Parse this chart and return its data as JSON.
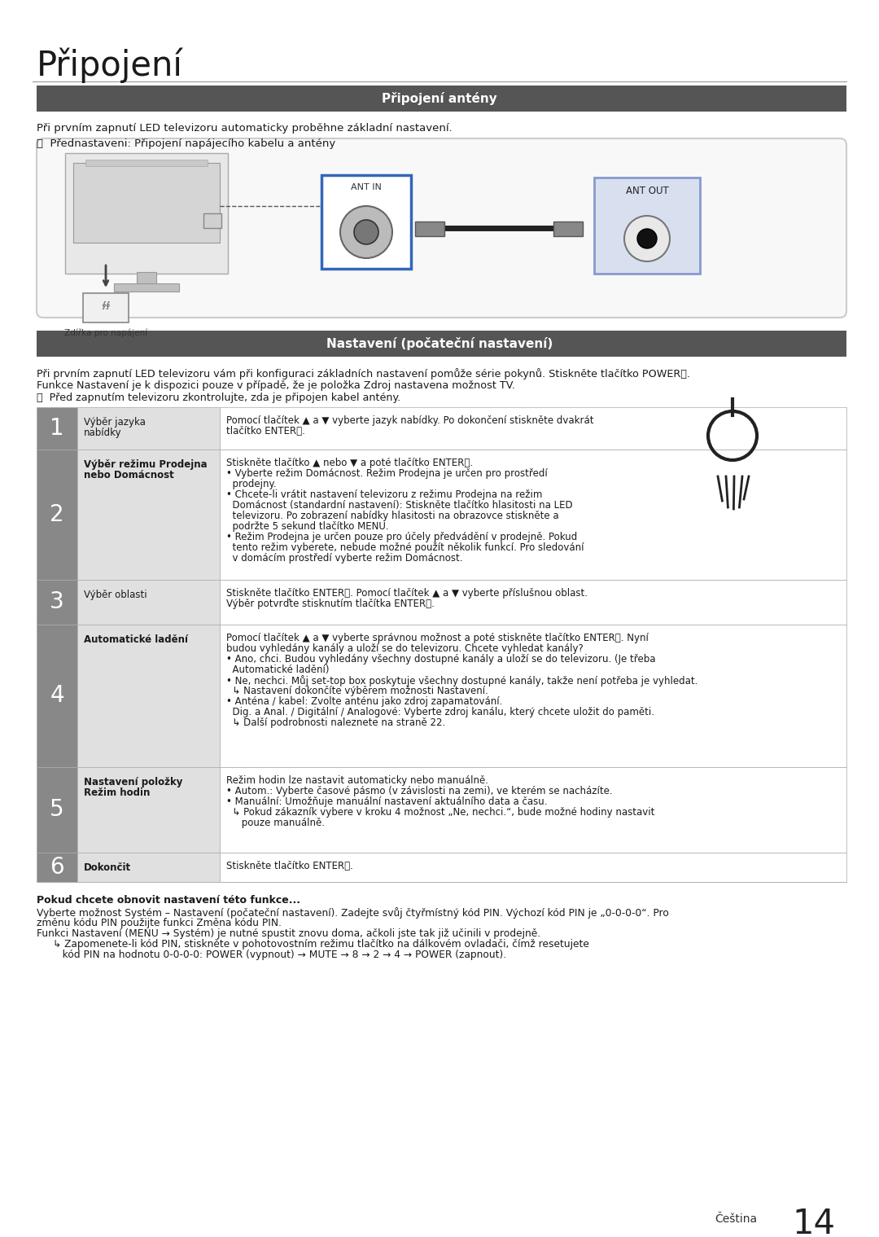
{
  "title": "Připojení",
  "section1_header": "Připojení antény",
  "section2_header": "Nastavení (počateční nastavení)",
  "header_bg": "#555555",
  "header_fg": "#ffffff",
  "bg_color": "#ffffff",
  "text_color": "#1a1a1a",
  "gray_num_bg": "#888888",
  "left_col_bg": "#e0e0e0",
  "row_bg_even": "#f5f5f5",
  "row_bg_odd": "#ffffff",
  "diagram_bg": "#f8f8f8",
  "diagram_border": "#cccccc",
  "ant_in_border": "#3366bb",
  "ant_out_bg": "#d8e0f0",
  "ant_out_border": "#8899cc",
  "line1": "Při prvním zapnutí LED televizoru automaticky proběhne základní nastavení.",
  "note1": "Přednastaveni: Připojení napájecího kabelu a antény",
  "line2a": "Při prvním zapnutí LED televizoru vám při konfiguraci základních nastavení pomůže série pokynů. Stiskněte tlačítko POWER⏻.",
  "line2b_plain": "Funkce ",
  "line2b_bold": "Nastavení",
  "line2b_rest": " je k dispozici pouze v případě, že je položka ",
  "line2b_bold2": "Zdroj",
  "line2b_end": " nastavena možnost TV.",
  "note2": "Před zapnutím televizoru zkontrolujte, zda je připojen kabel antény.",
  "steps": [
    {
      "num": "1",
      "left1": "Výběr jazyka",
      "left2": "nabídky",
      "left_bold": false,
      "right": [
        {
          "t": "Pomocí tlačítek ▲ a ▼ vyberte jazyk nabídky. Po dokončení stiskněte dvakrát",
          "bold": false,
          "indent": 0
        },
        {
          "t": "tlačítko ENTER⏵.",
          "bold": false,
          "indent": 0
        }
      ]
    },
    {
      "num": "2",
      "left1": "Výběr režimu Prodejna",
      "left2": "nebo Domácnost",
      "left_bold": true,
      "right": [
        {
          "t": "Stiskněte tlačítko ▲ nebo ▼ a poté tlačítko ENTER⏵.",
          "bold": false,
          "indent": 0
        },
        {
          "t": "• Vyberte režim Domácnost. Režim Prodejna je určen pro prostředí",
          "bold": false,
          "indent": 0
        },
        {
          "t": "  prodejny.",
          "bold": false,
          "indent": 0
        },
        {
          "t": "• Chcete-li vrátit nastavení televizoru z režimu Prodejna na režim",
          "bold": false,
          "indent": 0
        },
        {
          "t": "  Domácnost (standardní nastavení): Stiskněte tlačítko hlasitosti na LED",
          "bold": false,
          "indent": 0
        },
        {
          "t": "  televizoru. Po zobrazení nabídky hlasitosti na obrazovce stiskněte a",
          "bold": false,
          "indent": 0
        },
        {
          "t": "  podržte 5 sekund tlačítko MENU.",
          "bold": false,
          "indent": 0
        },
        {
          "t": "• Režim Prodejna je určen pouze pro účely předvádění v prodejně. Pokud",
          "bold": false,
          "indent": 0
        },
        {
          "t": "  tento režim vyberete, nebude možné použít několik funkcí. Pro sledování",
          "bold": false,
          "indent": 0
        },
        {
          "t": "  v domácím prostředí vyberte režim Domácnost.",
          "bold": false,
          "indent": 0
        }
      ]
    },
    {
      "num": "3",
      "left1": "Výběr oblasti",
      "left2": "",
      "left_bold": false,
      "right": [
        {
          "t": "Stiskněte tlačítko ENTER⏵. Pomocí tlačítek ▲ a ▼ vyberte příslušnou oblast.",
          "bold": false,
          "indent": 0
        },
        {
          "t": "Výběr potvrďte stisknutím tlačítka ENTER⏵.",
          "bold": false,
          "indent": 0
        }
      ]
    },
    {
      "num": "4",
      "left1": "Automatické ladění",
      "left2": "",
      "left_bold": true,
      "right": [
        {
          "t": "Pomocí tlačítek ▲ a ▼ vyberte správnou možnost a poté stiskněte tlačítko ENTER⏵. Nyní",
          "bold": false,
          "indent": 0
        },
        {
          "t": "budou vyhledány kanály a uloží se do televizoru. Chcete vyhledat kanály?",
          "bold": false,
          "indent": 0
        },
        {
          "t": "• Ano, chci. Budou vyhledány všechny dostupné kanály a uloží se do televizoru. (Je třeba",
          "bold": false,
          "indent": 0
        },
        {
          "t": "  Automatické ladění)",
          "bold": false,
          "indent": 0
        },
        {
          "t": "• Ne, nechci. Můj set-top box poskytuje všechny dostupné kanály, takže není potřeba je vyhledat.",
          "bold": false,
          "indent": 0
        },
        {
          "t": "  ↳ Nastavení dokončíte výběrem možnosti Nastavení.",
          "bold": false,
          "indent": 0
        },
        {
          "t": "• Anténa / kabel: Zvolte anténu jako zdroj zapamatování.",
          "bold": false,
          "indent": 0
        },
        {
          "t": "  Dig. a Anal. / Digitální / Analogové: Vyberte zdroj kanálu, který chcete uložit do paměti.",
          "bold": false,
          "indent": 0
        },
        {
          "t": "  ↳ Další podrobnosti naleznete na straně 22.",
          "bold": false,
          "indent": 0
        }
      ]
    },
    {
      "num": "5",
      "left1": "Nastavení položky",
      "left2": "Režim hodin",
      "left_bold": true,
      "right": [
        {
          "t": "Režim hodin lze nastavit automaticky nebo manuálně.",
          "bold": false,
          "indent": 0
        },
        {
          "t": "• Autom.: Vyberte časové pásmo (v závislosti na zemi), ve kterém se nacházíte.",
          "bold": false,
          "indent": 0
        },
        {
          "t": "• Manuální: Umožňuje manuální nastavení aktuálního data a času.",
          "bold": false,
          "indent": 0
        },
        {
          "t": "  ↳ Pokud zákazník vybere v kroku 4 možnost „Ne, nechci.“, bude možné hodiny nastavit",
          "bold": false,
          "indent": 0
        },
        {
          "t": "     pouze manuálně.",
          "bold": false,
          "indent": 0
        }
      ]
    },
    {
      "num": "6",
      "left1": "Dokončit",
      "left2": "",
      "left_bold": true,
      "right": [
        {
          "t": "Stiskněte tlačítko ENTER⏵.",
          "bold": false,
          "indent": 0
        }
      ]
    }
  ],
  "footer_bold": "Pokud chcete obnovit nastavení této funkce...",
  "footer_lines": [
    "Vyberte možnost Systém – Nastavení (počateční nastavení). Zadejte svůj čtyřmístný kód PIN. Výchozí kód PIN je „0-0-0-0“. Pro",
    "změnu kódu PIN použijte funkci Změna kódu PIN.",
    "Funkci Nastavení (MENU → Systém) je nutné spustit znovu doma, ačkoli jste tak již učinili v prodejně.",
    "↳ Zapomenete-li kód PIN, stiskněte v pohotovostním režimu tlačítko na dálkovém ovladači, čímž resetujete",
    "   kód PIN na hodnotu 0-0-0-0: POWER (vypnout) → MUTE → 8 → 2 → 4 → POWER (zapnout)."
  ],
  "page_lang": "Čeština",
  "page_num": "14"
}
